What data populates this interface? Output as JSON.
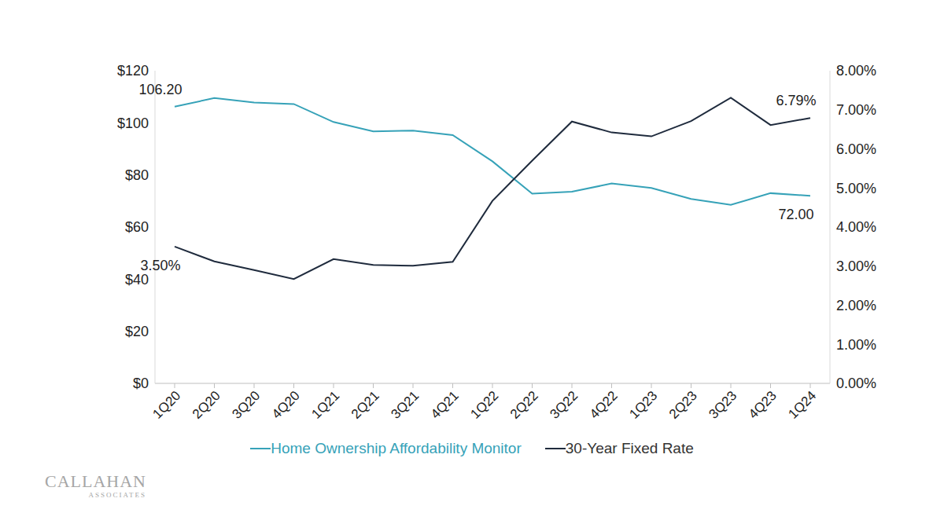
{
  "chart_data": {
    "type": "line",
    "categories": [
      "1Q20",
      "2Q20",
      "3Q20",
      "4Q20",
      "1Q21",
      "2Q21",
      "3Q21",
      "4Q21",
      "1Q22",
      "2Q22",
      "3Q22",
      "4Q22",
      "1Q23",
      "2Q23",
      "3Q23",
      "4Q23",
      "1Q24"
    ],
    "series": [
      {
        "name": "Home Ownership Affordability Monitor",
        "color": "#36a2b8",
        "values": [
          106.2,
          109.5,
          107.8,
          107.2,
          100.3,
          96.7,
          97.0,
          95.3,
          85.2,
          72.8,
          73.6,
          76.7,
          75.0,
          70.8,
          68.5,
          73.0,
          72.0
        ],
        "value_labels": [
          "106.20",
          null,
          null,
          null,
          null,
          null,
          null,
          null,
          null,
          null,
          null,
          null,
          null,
          null,
          null,
          null,
          "72.00"
        ]
      },
      {
        "name": "30-Year Fixed Rate",
        "color": "#1f2b3d",
        "axis": "y2",
        "values": [
          3.5,
          3.12,
          2.9,
          2.67,
          3.18,
          3.03,
          3.01,
          3.11,
          4.67,
          5.7,
          6.7,
          6.42,
          6.32,
          6.71,
          7.31,
          6.61,
          6.79
        ],
        "value_labels": [
          "3.50%",
          null,
          null,
          null,
          null,
          null,
          null,
          null,
          null,
          null,
          null,
          null,
          null,
          null,
          null,
          null,
          "6.79%"
        ]
      }
    ],
    "ylim": [
      0,
      120
    ],
    "yticks": [
      {
        "value": 0,
        "label": "$0"
      },
      {
        "value": 20,
        "label": "$20"
      },
      {
        "value": 40,
        "label": "$40"
      },
      {
        "value": 60,
        "label": "$60"
      },
      {
        "value": 80,
        "label": "$80"
      },
      {
        "value": 100,
        "label": "$100"
      },
      {
        "value": 120,
        "label": "$120"
      }
    ],
    "y2lim": [
      0,
      8
    ],
    "y2ticks": [
      {
        "value": 0,
        "label": "0.00%"
      },
      {
        "value": 1,
        "label": "1.00%"
      },
      {
        "value": 2,
        "label": "2.00%"
      },
      {
        "value": 3,
        "label": "3.00%"
      },
      {
        "value": 4,
        "label": "4.00%"
      },
      {
        "value": 5,
        "label": "5.00%"
      },
      {
        "value": 6,
        "label": "6.00%"
      },
      {
        "value": 7,
        "label": "7.00%"
      },
      {
        "value": 8,
        "label": "8.00%"
      }
    ],
    "grid": false,
    "legend": "bottom",
    "data_labels": true,
    "logo": [
      "CALLAHAN",
      "ASSOCIATES"
    ]
  }
}
